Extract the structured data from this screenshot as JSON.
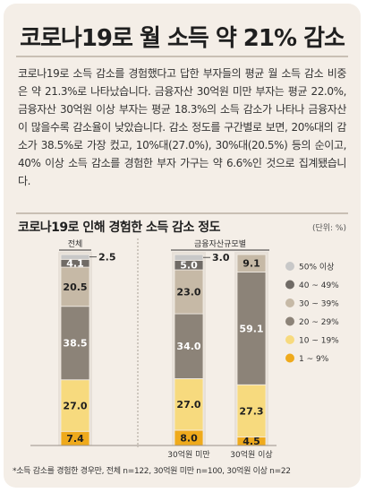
{
  "title": "코로나19로 월 소득 약 21% 감소",
  "body": "코로나19로 소득 감소를 경험했다고 답한 부자들의 평균 월 소득 감소 비중은 약 21.3%로 나타났습니다. 금융자산 30억원 미만 부자는 평균 22.0%, 금융자산 30억원 이상 부자는 평균 18.3%의 소득 감소가 나타나 금융자산이 많을수록 감소율이 낮았습니다. 감소 정도를 구간별로 보면, 20%대의 감소가 38.5%로 가장 컸고, 10%대(27.0%), 30%대(20.5%) 등의 순이고, 40% 이상 소득 감소를 경험한 부자 가구는 약 6.6%인 것으로 집계됐습니다.",
  "footnote": "*소득 감소를 경험한 경우만, 전체 n=122, 30억원 미만 n=100, 30억원 이상 n=22",
  "chart_data": {
    "type": "bar",
    "stacked": true,
    "title": "코로나19로 인해 경험한 소득 감소 정도",
    "unit": "(단위: %)",
    "group_labels": [
      "전체",
      "금융자산규모별"
    ],
    "categories": [
      "",
      "30억원 미만",
      "30억원 이상"
    ],
    "series": [
      {
        "name": "1 ~ 9%",
        "color": "#efaa1c",
        "values": [
          7.4,
          8.0,
          4.5
        ]
      },
      {
        "name": "10 ~ 19%",
        "color": "#f7da7e",
        "values": [
          27.0,
          27.0,
          27.3
        ]
      },
      {
        "name": "20 ~ 29%",
        "color": "#8c8378",
        "values": [
          38.5,
          34.0,
          59.1
        ]
      },
      {
        "name": "30 ~ 39%",
        "color": "#c6b9a6",
        "values": [
          20.5,
          23.0,
          9.1
        ]
      },
      {
        "name": "40 ~ 49%",
        "color": "#706b66",
        "values": [
          4.1,
          5.0,
          0
        ]
      },
      {
        "name": "50% 이상",
        "color": "#c8c8c8",
        "values": [
          2.5,
          3.0,
          0
        ]
      }
    ],
    "data_labels": [
      [
        "7.4",
        "27.0",
        "38.5",
        "20.5",
        "4.1",
        "2.5"
      ],
      [
        "8.0",
        "27.0",
        "34.0",
        "23.0",
        "5.0",
        "3.0"
      ],
      [
        "4.5",
        "27.3",
        "59.1",
        "9.1",
        "",
        ""
      ]
    ],
    "label_colors": [
      "#1f1f1f",
      "#1f1f1f",
      "#ffffff",
      "#1f1f1f",
      "#ffffff",
      "#1f1f1f"
    ],
    "legend_order": [
      "50% 이상",
      "40 ~ 49%",
      "30 ~ 39%",
      "20 ~ 29%",
      "10 ~ 19%",
      "1 ~ 9%"
    ],
    "legend_position": "right"
  }
}
